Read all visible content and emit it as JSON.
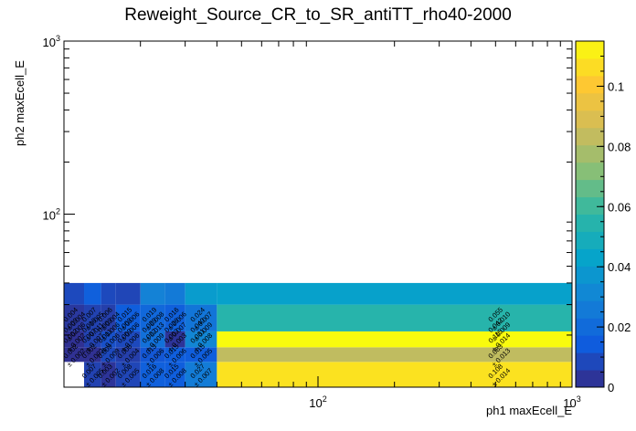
{
  "chart_data": {
    "type": "heatmap",
    "title": "Reweight_Source_CR_to_SR_antiTT_rho40-2000",
    "xlabel": "ph1 maxEcell_E",
    "ylabel": "ph2 maxEcell_E",
    "x_scale": "log",
    "y_scale": "log",
    "x_range": [
      10,
      1000
    ],
    "y_range": [
      10,
      1000
    ],
    "x_ticks": [
      {
        "value": 100,
        "label": "10^2"
      },
      {
        "value": 1000,
        "label": "10^3"
      }
    ],
    "y_ticks": [
      {
        "value": 100,
        "label": "10^2"
      },
      {
        "value": 1000,
        "label": "10^3"
      }
    ],
    "x_edges": [
      10,
      12,
      14,
      16,
      20,
      25,
      30,
      40,
      1000
    ],
    "y_edges": [
      10,
      14,
      17,
      21,
      30,
      40,
      1000
    ],
    "colorbar": {
      "min": 0,
      "max": 0.115,
      "ticks": [
        0,
        0.02,
        0.04,
        0.06,
        0.08,
        0.1
      ],
      "tick_labels": [
        "0",
        "0.02",
        "0.04",
        "0.06",
        "0.08",
        "0.1"
      ]
    },
    "palette": [
      "#352a87",
      "#0f5cdd",
      "#1481d6",
      "#06a4ca",
      "#2eb7a4",
      "#87bf77",
      "#d1bb59",
      "#fec832",
      "#f9fb0e"
    ],
    "cells": [
      {
        "ix": 0,
        "iy": 0,
        "value": 0,
        "label": "",
        "err": ""
      },
      {
        "ix": 1,
        "iy": 0,
        "value": 0.007,
        "label": "0.007",
        "err": "± 0.005"
      },
      {
        "ix": 2,
        "iy": 0,
        "value": 0.003,
        "label": "0.003",
        "err": "± 0.002"
      },
      {
        "ix": 3,
        "iy": 0,
        "value": 0.008,
        "label": "0.008",
        "err": "± 0.005"
      },
      {
        "ix": 4,
        "iy": 0,
        "value": 0.016,
        "label": "0.016",
        "err": "± 0.008"
      },
      {
        "ix": 5,
        "iy": 0,
        "value": 0.015,
        "label": "0.015",
        "err": "± 0.008"
      },
      {
        "ix": 6,
        "iy": 0,
        "value": 0.027,
        "label": "0.027",
        "err": "± 0.007"
      },
      {
        "ix": 7,
        "iy": 0,
        "value": 0.108,
        "label": "0.108",
        "err": "± 0.014"
      },
      {
        "ix": 0,
        "iy": 1,
        "value": 0.002,
        "label": "0.002",
        "err": "± 0.002"
      },
      {
        "ix": 1,
        "iy": 1,
        "value": 0.002,
        "label": "0.002",
        "err": "± 0.002"
      },
      {
        "ix": 2,
        "iy": 1,
        "value": 0.009,
        "label": "0.009",
        "err": "± 0.009"
      },
      {
        "ix": 3,
        "iy": 1,
        "value": 0.006,
        "label": "0.006",
        "err": "± 0.004"
      },
      {
        "ix": 4,
        "iy": 1,
        "value": 0.013,
        "label": "0.013",
        "err": "± 0.006"
      },
      {
        "ix": 5,
        "iy": 1,
        "value": 0.015,
        "label": "0.015",
        "err": "± 0.006"
      },
      {
        "ix": 6,
        "iy": 1,
        "value": 0.015,
        "label": "0.015",
        "err": "± 0.005"
      },
      {
        "ix": 7,
        "iy": 1,
        "value": 0.083,
        "label": "0.083",
        "err": "± 0.013"
      },
      {
        "ix": 0,
        "iy": 2,
        "value": 0.002,
        "label": "0.002",
        "err": "± 0.002"
      },
      {
        "ix": 1,
        "iy": 2,
        "value": 0.007,
        "label": "0.007",
        "err": "± 0.007"
      },
      {
        "ix": 2,
        "iy": 2,
        "value": 0.011,
        "label": "0.011",
        "err": "± 0.006"
      },
      {
        "ix": 3,
        "iy": 2,
        "value": 0.009,
        "label": "0.009",
        "err": "± 0.006"
      },
      {
        "ix": 4,
        "iy": 2,
        "value": 0.022,
        "label": "0.022",
        "err": "± 0.009"
      },
      {
        "ix": 5,
        "iy": 2,
        "value": 0.003,
        "label": "0.003",
        "err": "± 0.003"
      },
      {
        "ix": 6,
        "iy": 2,
        "value": 0.031,
        "label": "0.031",
        "err": "± 0.008"
      },
      {
        "ix": 7,
        "iy": 2,
        "value": 0.115,
        "label": "0.115",
        "err": "± 0.014"
      },
      {
        "ix": 0,
        "iy": 3,
        "value": 0.004,
        "label": "0.004",
        "err": "± 0.004"
      },
      {
        "ix": 1,
        "iy": 3,
        "value": 0.007,
        "label": "0.007",
        "err": "± 0.005"
      },
      {
        "ix": 2,
        "iy": 3,
        "value": 0.006,
        "label": "0.006",
        "err": "± 0.004"
      },
      {
        "ix": 3,
        "iy": 3,
        "value": 0.015,
        "label": "0.015",
        "err": "± 0.006"
      },
      {
        "ix": 4,
        "iy": 3,
        "value": 0.019,
        "label": "0.019",
        "err": "± 0.008"
      },
      {
        "ix": 5,
        "iy": 3,
        "value": 0.016,
        "label": "0.016",
        "err": "± 0.006"
      },
      {
        "ix": 6,
        "iy": 3,
        "value": 0.024,
        "label": "0.024",
        "err": "± 0.007"
      },
      {
        "ix": 7,
        "iy": 3,
        "value": 0.055,
        "label": "0.055",
        "err": "± 0.010"
      },
      {
        "ix": 0,
        "iy": 4,
        "value": 0.009,
        "label": "0.009",
        "err": "± 0.006"
      },
      {
        "ix": 1,
        "iy": 4,
        "value": 0.016,
        "label": "0.016",
        "err": "± 0.011"
      },
      {
        "ix": 2,
        "iy": 4,
        "value": 0.009,
        "label": "0.009",
        "err": "± 0.006"
      },
      {
        "ix": 3,
        "iy": 4,
        "value": 0.008,
        "label": "0.008",
        "err": "± 0.006"
      },
      {
        "ix": 4,
        "iy": 4,
        "value": 0.029,
        "label": "0.029",
        "err": "± 0.013"
      },
      {
        "ix": 5,
        "iy": 4,
        "value": 0.026,
        "label": "0.026",
        "err": "± 0.007"
      },
      {
        "ix": 6,
        "iy": 4,
        "value": 0.04,
        "label": "0.040",
        "err": "± 0.009"
      },
      {
        "ix": 7,
        "iy": 4,
        "value": 0.042,
        "label": "0.042",
        "err": "± 0.009"
      }
    ]
  }
}
